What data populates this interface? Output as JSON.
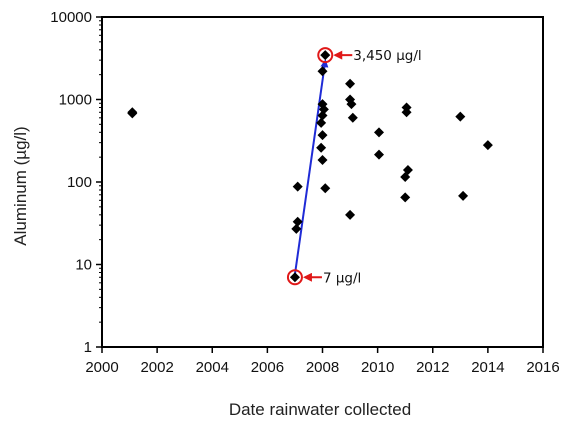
{
  "chart_data": {
    "type": "scatter",
    "title": "",
    "xlabel": "Date rainwater collected",
    "ylabel": "Aluminum (µg/l)",
    "xlim": [
      2000,
      2016
    ],
    "ylim": [
      1,
      10000
    ],
    "yscale": "log",
    "x_ticks": [
      "2000",
      "2002",
      "2004",
      "2006",
      "2008",
      "2010",
      "2012",
      "2014",
      "2016"
    ],
    "y_ticks": [
      "1",
      "10",
      "100",
      "1000",
      "10000"
    ],
    "grid": false,
    "legend": "none",
    "marker_color": "#000000",
    "points": [
      {
        "x": 2001.1,
        "y": 700
      },
      {
        "x": 2001.1,
        "y": 680
      },
      {
        "x": 2007.0,
        "y": 7
      },
      {
        "x": 2007.05,
        "y": 27
      },
      {
        "x": 2007.1,
        "y": 33
      },
      {
        "x": 2007.1,
        "y": 88
      },
      {
        "x": 2008.0,
        "y": 2200
      },
      {
        "x": 2008.1,
        "y": 3450
      },
      {
        "x": 2008.0,
        "y": 880
      },
      {
        "x": 2008.05,
        "y": 760
      },
      {
        "x": 2008.0,
        "y": 640
      },
      {
        "x": 2007.95,
        "y": 520
      },
      {
        "x": 2008.0,
        "y": 370
      },
      {
        "x": 2007.95,
        "y": 260
      },
      {
        "x": 2008.0,
        "y": 185
      },
      {
        "x": 2008.1,
        "y": 84
      },
      {
        "x": 2009.0,
        "y": 1550
      },
      {
        "x": 2009.0,
        "y": 1000
      },
      {
        "x": 2009.05,
        "y": 880
      },
      {
        "x": 2009.1,
        "y": 600
      },
      {
        "x": 2009.0,
        "y": 40
      },
      {
        "x": 2010.05,
        "y": 400
      },
      {
        "x": 2010.05,
        "y": 215
      },
      {
        "x": 2011.05,
        "y": 800
      },
      {
        "x": 2011.05,
        "y": 700
      },
      {
        "x": 2011.1,
        "y": 140
      },
      {
        "x": 2011.0,
        "y": 115
      },
      {
        "x": 2011.0,
        "y": 65
      },
      {
        "x": 2013.0,
        "y": 620
      },
      {
        "x": 2013.1,
        "y": 68
      },
      {
        "x": 2014.0,
        "y": 280
      }
    ],
    "highlights": [
      {
        "x": 2007.0,
        "y": 7,
        "label": "7 µg/l"
      },
      {
        "x": 2008.1,
        "y": 3450,
        "label": "3,450 µg/l"
      }
    ],
    "connector": {
      "from": {
        "x": 2007.0,
        "y": 7
      },
      "to": {
        "x": 2008.1,
        "y": 3450
      },
      "color": "#1f2bd6"
    },
    "highlight_color": "#e01818"
  }
}
